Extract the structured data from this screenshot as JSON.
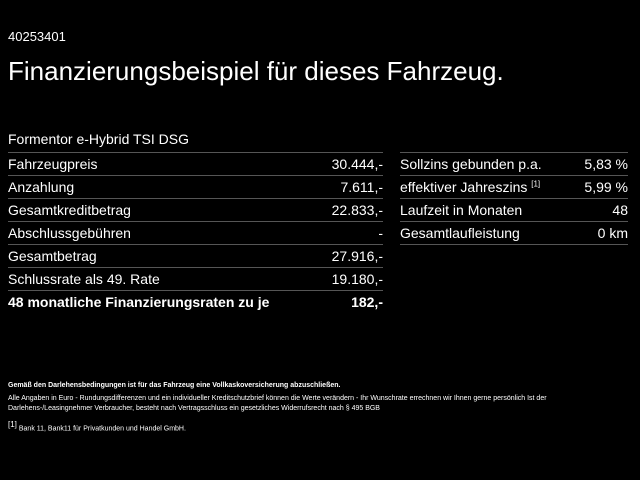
{
  "code": "40253401",
  "title": "Finanzierungsbeispiel für dieses Fahrzeug.",
  "model": "Formentor e-Hybrid TSI DSG",
  "left_rows": [
    {
      "label": "Fahrzeugpreis",
      "value": "30.444,-"
    },
    {
      "label": "Anzahlung",
      "value": "7.611,-"
    },
    {
      "label": "Gesamtkreditbetrag",
      "value": "22.833,-"
    },
    {
      "label": "Abschlussgebühren",
      "value": "-"
    },
    {
      "label": "Gesamtbetrag",
      "value": "27.916,-"
    },
    {
      "label": "Schlussrate als 49. Rate",
      "value": "19.180,-"
    },
    {
      "label": "48 monatliche Finanzierungsraten zu je",
      "value": "182,-"
    }
  ],
  "right_rows": [
    {
      "label": "Sollzins gebunden p.a.",
      "value": "5,83 %"
    },
    {
      "label": "effektiver Jahreszins",
      "sup": "[1]",
      "value": "5,99 %"
    },
    {
      "label": "Laufzeit in Monaten",
      "value": "48"
    },
    {
      "label": "Gesamtlaufleistung",
      "value": "0 km"
    }
  ],
  "footnotes": {
    "bold": "Gemäß den Darlehensbedingungen ist für das Fahrzeug eine Vollkaskoversicherung abzuschließen.",
    "info": "Alle Angaben in Euro - Rundungsdifferenzen und ein individueller Kreditschutzbrief können die Werte verändern - Ihr Wunschrate errechnen wir Ihnen gerne persönlich Ist der Darlehens-/Leasingnehmer Verbraucher, besteht nach Vertragsschluss ein gesetzliches Widerrufsrecht nach § 495 BGB",
    "bank_marker": "[1]",
    "bank": "Bank 11, Bank11 für Privatkunden und Handel GmbH."
  }
}
